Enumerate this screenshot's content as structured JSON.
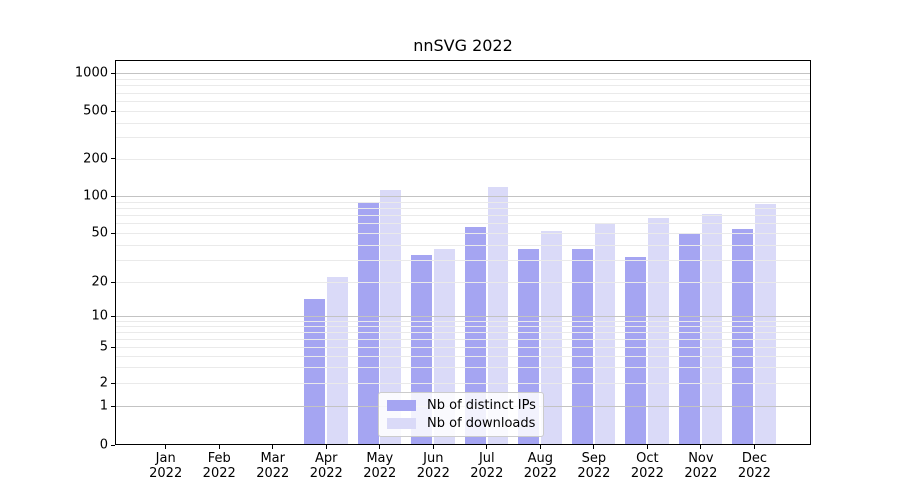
{
  "chart_data": {
    "type": "bar",
    "title": "nnSVG 2022",
    "categories": [
      "Jan 2022",
      "Feb 2022",
      "Mar 2022",
      "Apr 2022",
      "May 2022",
      "Jun 2022",
      "Jul 2022",
      "Aug 2022",
      "Sep 2022",
      "Oct 2022",
      "Nov 2022",
      "Dec 2022"
    ],
    "series": [
      {
        "name": "Nb of distinct IPs",
        "color": "#a5a5f2",
        "values": [
          0,
          0,
          0,
          14,
          87,
          33,
          56,
          37,
          37,
          32,
          49,
          54
        ]
      },
      {
        "name": "Nb of downloads",
        "color": "#dadaf8",
        "values": [
          0,
          0,
          0,
          22,
          112,
          37,
          118,
          52,
          60,
          66,
          71,
          86
        ]
      }
    ],
    "yscale": "symlog",
    "yticks": [
      0,
      1,
      2,
      5,
      10,
      20,
      50,
      100,
      200,
      500,
      1000
    ],
    "ylim": [
      0,
      1300
    ],
    "xlabel": "",
    "ylabel": "",
    "grid": "both",
    "legend_position": "lower center"
  },
  "colors": {
    "background": "#ffffff",
    "spine": "#000000",
    "major_grid": "#c3c3c3",
    "minor_grid": "#eaeaea",
    "legend_border": "#cccccc",
    "bar_distinct_ips": "#a5a5f2",
    "bar_downloads": "#dadaf8"
  }
}
